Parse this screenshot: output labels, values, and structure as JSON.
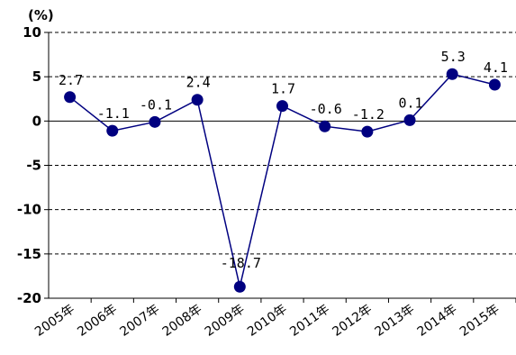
{
  "chart_data": {
    "type": "line",
    "unit_label": "(%)",
    "categories": [
      "2005年",
      "2006年",
      "2007年",
      "2008年",
      "2009年",
      "2010年",
      "2011年",
      "2012年",
      "2013年",
      "2014年",
      "2015年"
    ],
    "series": [
      {
        "values": [
          2.7,
          -1.1,
          -0.1,
          2.4,
          -18.7,
          1.7,
          -0.6,
          -1.2,
          0.1,
          5.3,
          4.1
        ]
      }
    ],
    "data_labels": [
      "2.7",
      "-1.1",
      "-0.1",
      "2.4",
      "-18.7",
      "1.7",
      "-0.6",
      "-1.2",
      "0.1",
      "5.3",
      "4.1"
    ],
    "yticks": [
      "10",
      "5",
      "0",
      "-5",
      "-10",
      "-15",
      "-20"
    ],
    "ylim": [
      -20,
      10
    ],
    "grid": "dashed horizontal",
    "line_color": "#000080",
    "marker_color": "#000080",
    "legend": "none"
  }
}
